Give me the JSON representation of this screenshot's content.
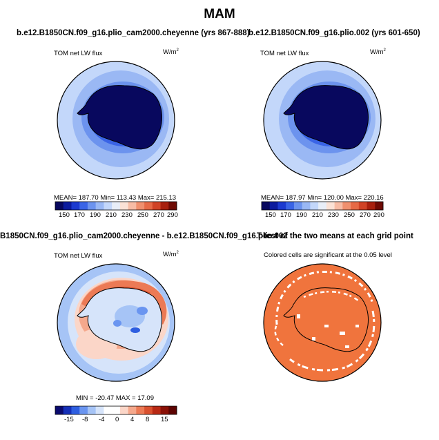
{
  "page_title": "MAM",
  "colors": {
    "abs_bar": [
      "#08085e",
      "#0c1b9e",
      "#1c3ad0",
      "#3a64e6",
      "#6c93ee",
      "#9ab8f4",
      "#c3d7fa",
      "#e8eef8",
      "#fbe2d6",
      "#f7bca5",
      "#f0906e",
      "#e66a46",
      "#d04326",
      "#a8200e",
      "#6e0a04"
    ],
    "diff_bar": [
      "#0a0a6e",
      "#1530b8",
      "#2e5ee0",
      "#6a95f0",
      "#a6c4f6",
      "#d6e4fa",
      "#ffffff",
      "#ffffff",
      "#fbd6c8",
      "#f5a88c",
      "#ec7a55",
      "#d9502e",
      "#b82914",
      "#8a1006",
      "#5c0402"
    ],
    "ttest_fill": "#f0743d"
  },
  "panels": {
    "top_left": {
      "title": "b.e12.B1850CN.f09_g16.plio_cam2000.cheyenne (yrs 867-888)",
      "variable": "TOM net LW flux",
      "units": "W/m",
      "units_exp": "2",
      "stats": "MEAN=  187.70   Min=  113.43   Max=  215.13"
    },
    "top_right": {
      "title": "b.e12.B1850CN.f09_g16.plio.002 (yrs 601-650)",
      "variable": "TOM net LW flux",
      "units": "W/m",
      "units_exp": "2",
      "stats": "MEAN=  187.97   Min=  120.00   Max=  220.16"
    },
    "bottom_left": {
      "title": "B1850CN.f09_g16.plio_cam2000.cheyenne - b.e12.B1850CN.f09_g16.plio.002",
      "variable": "TOM net LW flux",
      "units": "W/m",
      "units_exp": "2",
      "stats": "MIN =  -20.47   MAX =   17.09"
    },
    "bottom_right": {
      "title": "T-test of the two means at each grid point",
      "note": "Colored cells are significant at the 0.05 level"
    }
  },
  "chart_data": [
    {
      "type": "heatmap",
      "title": "b.e12.B1850CN.f09_g16.plio_cam2000.cheyenne (yrs 867-888)",
      "variable": "TOM net LW flux",
      "units": "W/m2",
      "projection": "south polar stereographic",
      "mean": 187.7,
      "min": 113.43,
      "max": 215.13,
      "colorbar_levels": [
        150,
        160,
        170,
        180,
        190,
        200,
        210,
        220,
        230,
        240,
        250,
        260,
        270,
        280,
        290
      ],
      "colorbar_ticks": [
        "150",
        "170",
        "190",
        "210",
        "230",
        "250",
        "270",
        "290"
      ]
    },
    {
      "type": "heatmap",
      "title": "b.e12.B1850CN.f09_g16.plio.002 (yrs 601-650)",
      "variable": "TOM net LW flux",
      "units": "W/m2",
      "projection": "south polar stereographic",
      "mean": 187.97,
      "min": 120.0,
      "max": 220.16,
      "colorbar_levels": [
        150,
        160,
        170,
        180,
        190,
        200,
        210,
        220,
        230,
        240,
        250,
        260,
        270,
        280,
        290
      ],
      "colorbar_ticks": [
        "150",
        "170",
        "190",
        "210",
        "230",
        "250",
        "270",
        "290"
      ]
    },
    {
      "type": "heatmap",
      "title": "B1850CN.f09_g16.plio_cam2000.cheyenne - b.e12.B1850CN.f09_g16.plio.002",
      "variable": "TOM net LW flux",
      "units": "W/m2",
      "projection": "south polar stereographic",
      "min": -20.47,
      "max": 17.09,
      "colorbar_levels": [
        -15,
        -12,
        -8,
        -6,
        -4,
        -2,
        0,
        2,
        4,
        6,
        8,
        12,
        15
      ],
      "colorbar_ticks": [
        "-15",
        "-8",
        "-4",
        "0",
        "4",
        "8",
        "15"
      ]
    },
    {
      "type": "heatmap",
      "title": "T-test of the two means at each grid point",
      "note": "Colored cells are significant at the 0.05 level",
      "projection": "south polar stereographic",
      "significance_level": 0.05
    }
  ]
}
